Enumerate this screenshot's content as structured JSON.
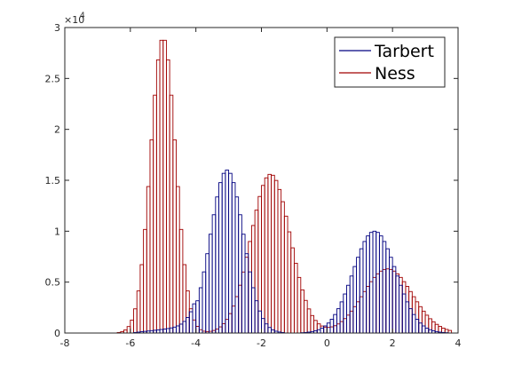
{
  "chart_data": {
    "type": "bar",
    "subtype": "histogram",
    "title": "",
    "xlabel": "",
    "ylabel": "",
    "xlim": [
      -8,
      4
    ],
    "ylim": [
      0,
      30000
    ],
    "x_ticks": [
      -8,
      -6,
      -4,
      -2,
      0,
      2,
      4
    ],
    "x_tick_labels": [
      "-8",
      "-6",
      "-4",
      "-2",
      "0",
      "2",
      "4"
    ],
    "y_ticks": [
      0,
      5000,
      10000,
      15000,
      20000,
      25000,
      30000
    ],
    "y_tick_labels": [
      "0",
      "0.5",
      "1",
      "1.5",
      "2",
      "2.5",
      "3"
    ],
    "y_exponent_label": "×10",
    "y_exponent": "4",
    "grid": false,
    "legend_position": "top-right",
    "series": [
      {
        "name": "Tarbert",
        "color": "#000080",
        "components": [
          {
            "mean": -3.05,
            "sd": 0.5,
            "peak": 16000
          },
          {
            "mean": 1.45,
            "sd": 0.65,
            "peak": 10000
          }
        ],
        "tail_to_left": {
          "start": -6.0,
          "end": -4.0,
          "max": 1200
        }
      },
      {
        "name": "Ness",
        "color": "#a00000",
        "components": [
          {
            "mean": -5.0,
            "sd": 0.38,
            "peak": 29000
          },
          {
            "mean": -1.72,
            "sd": 0.6,
            "peak": 15600
          },
          {
            "mean": 1.85,
            "sd": 0.75,
            "peak": 6300
          }
        ],
        "tail_to_left": {
          "start": -7.2,
          "end": -5.8,
          "max": 0
        }
      }
    ],
    "bin_start": -7.2,
    "bin_end": 3.8,
    "bin_width": 0.1
  }
}
